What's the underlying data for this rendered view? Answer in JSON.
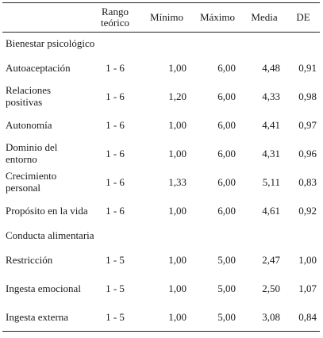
{
  "header": {
    "label": "",
    "rango": "Rango teórico",
    "minimo": "Mínimo",
    "maximo": "Máximo",
    "media": "Media",
    "de": "DE"
  },
  "sections": [
    {
      "title": "Bienestar psicológico",
      "rows": [
        {
          "label": "Autoaceptación",
          "rango": "1 - 6",
          "minimo": "1,00",
          "maximo": "6,00",
          "media": "4,48",
          "de": "0,91"
        },
        {
          "label": "Relaciones positivas",
          "rango": "1 - 6",
          "minimo": "1,20",
          "maximo": "6,00",
          "media": "4,33",
          "de": "0,98"
        },
        {
          "label": "Autonomía",
          "rango": "1 - 6",
          "minimo": "1,00",
          "maximo": "6,00",
          "media": "4,41",
          "de": "0,97"
        },
        {
          "label": "Dominio del entorno",
          "rango": "1 - 6",
          "minimo": "1,00",
          "maximo": "6,00",
          "media": "4,31",
          "de": "0,96"
        },
        {
          "label": "Crecimiento personal",
          "rango": "1 - 6",
          "minimo": "1,33",
          "maximo": "6,00",
          "media": "5,11",
          "de": "0,83"
        },
        {
          "label": "Propósito en la vida",
          "rango": "1 - 6",
          "minimo": "1,00",
          "maximo": "6,00",
          "media": "4,61",
          "de": "0,92"
        }
      ]
    },
    {
      "title": "Conducta alimentaria",
      "rows": [
        {
          "label": "Restricción",
          "rango": "1 - 5",
          "minimo": "1,00",
          "maximo": "5,00",
          "media": "2,47",
          "de": "1,00"
        },
        {
          "label": "Ingesta emocional",
          "rango": "1 - 5",
          "minimo": "1,00",
          "maximo": "5,00",
          "media": "2,50",
          "de": "1,07"
        },
        {
          "label": "Ingesta externa",
          "rango": "1 - 5",
          "minimo": "1,00",
          "maximo": "5,00",
          "media": "3,08",
          "de": "0,84"
        }
      ]
    }
  ]
}
